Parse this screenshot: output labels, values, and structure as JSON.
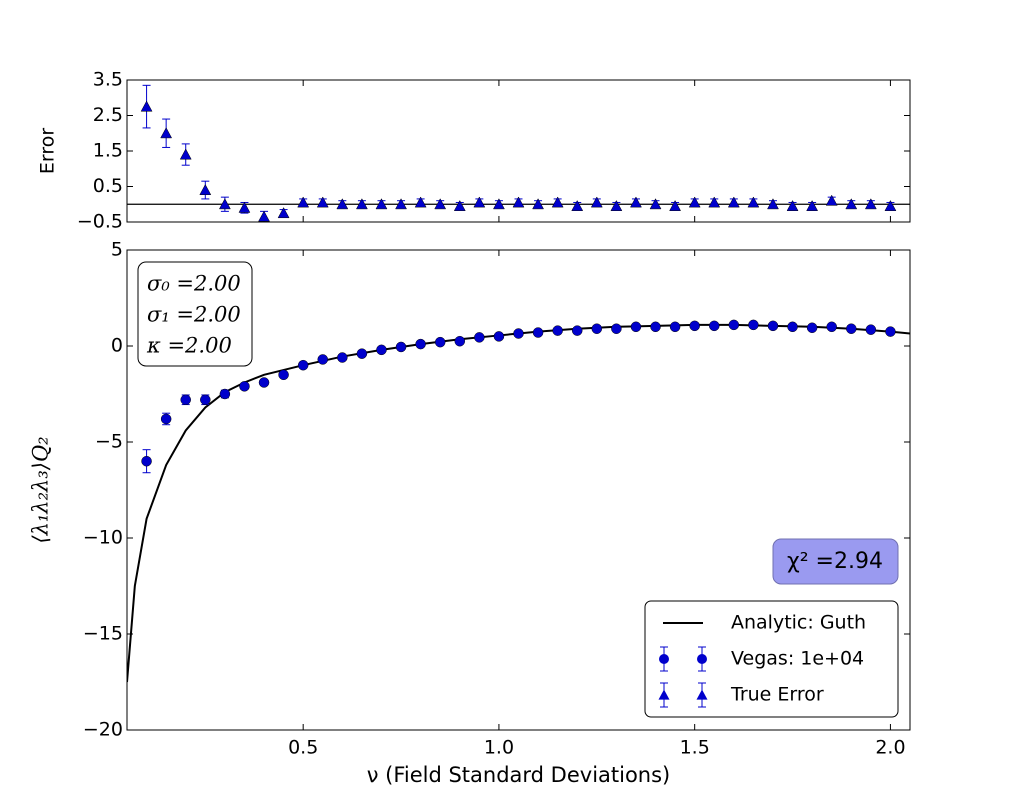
{
  "chart_data": [
    {
      "type": "scatter",
      "ylabel": "Error",
      "x": [
        0.1,
        0.15,
        0.2,
        0.25,
        0.3,
        0.35,
        0.4,
        0.45,
        0.5,
        0.55,
        0.6,
        0.65,
        0.7,
        0.75,
        0.8,
        0.85,
        0.9,
        0.95,
        1.0,
        1.05,
        1.1,
        1.15,
        1.2,
        1.25,
        1.3,
        1.35,
        1.4,
        1.45,
        1.5,
        1.55,
        1.6,
        1.65,
        1.7,
        1.75,
        1.8,
        1.85,
        1.9,
        1.95,
        2.0
      ],
      "series": [
        {
          "name": "True Error",
          "color": "#0000cc",
          "marker": "triangle",
          "values": [
            2.75,
            2.0,
            1.4,
            0.4,
            0.0,
            -0.1,
            -0.35,
            -0.25,
            0.05,
            0.05,
            0.0,
            0.0,
            0.0,
            0.0,
            0.05,
            0.0,
            -0.05,
            0.05,
            0.0,
            0.05,
            0.0,
            0.05,
            -0.05,
            0.05,
            -0.05,
            0.05,
            0.0,
            -0.05,
            0.05,
            0.05,
            0.05,
            0.05,
            0.0,
            -0.05,
            -0.05,
            0.1,
            0.0,
            0.0,
            -0.05
          ],
          "errors": [
            0.6,
            0.4,
            0.3,
            0.25,
            0.2,
            0.15,
            0.15,
            0.1,
            0.1,
            0.1,
            0.1,
            0.1,
            0.1,
            0.1,
            0.1,
            0.1,
            0.1,
            0.1,
            0.1,
            0.1,
            0.1,
            0.1,
            0.1,
            0.1,
            0.1,
            0.1,
            0.1,
            0.1,
            0.1,
            0.1,
            0.1,
            0.1,
            0.1,
            0.1,
            0.1,
            0.1,
            0.1,
            0.1,
            0.1
          ]
        }
      ],
      "hline": 0,
      "xlim": [
        0.05,
        2.05
      ],
      "ylim": [
        -0.5,
        3.5
      ],
      "yticks": [
        {
          "value": -0.5,
          "label": "−0.5"
        },
        0.5,
        1.5,
        2.5,
        3.5
      ]
    },
    {
      "type": "scatter",
      "xlabel": "ν (Field Standard Deviations)",
      "ylabel": "⟨λ₁λ₂λ₃⟩Q₂",
      "annotations": [
        "σ₀ =2.00",
        "σ₁ =2.00",
        "κ =2.00"
      ],
      "chi_label": "χ² =2.94",
      "x": [
        0.1,
        0.15,
        0.2,
        0.25,
        0.3,
        0.35,
        0.4,
        0.45,
        0.5,
        0.55,
        0.6,
        0.65,
        0.7,
        0.75,
        0.8,
        0.85,
        0.9,
        0.95,
        1.0,
        1.05,
        1.1,
        1.15,
        1.2,
        1.25,
        1.3,
        1.35,
        1.4,
        1.45,
        1.5,
        1.55,
        1.6,
        1.65,
        1.7,
        1.75,
        1.8,
        1.85,
        1.9,
        1.95,
        2.0
      ],
      "series": [
        {
          "name": "Analytic: Guth",
          "color": "#000000",
          "marker": "line",
          "x": [
            0.05,
            0.07,
            0.1,
            0.15,
            0.2,
            0.25,
            0.3,
            0.35,
            0.4,
            0.5,
            0.6,
            0.7,
            0.8,
            0.9,
            1.0,
            1.1,
            1.2,
            1.3,
            1.4,
            1.5,
            1.6,
            1.7,
            1.8,
            1.9,
            2.0,
            2.05
          ],
          "values": [
            -17.5,
            -12.5,
            -9,
            -6.2,
            -4.4,
            -3.2,
            -2.4,
            -1.9,
            -1.5,
            -1.0,
            -0.55,
            -0.2,
            0.1,
            0.35,
            0.55,
            0.75,
            0.9,
            1.0,
            1.05,
            1.1,
            1.1,
            1.05,
            1.0,
            0.9,
            0.75,
            0.65
          ]
        },
        {
          "name": "Vegas: 1e+04",
          "color": "#0000cc",
          "marker": "circle",
          "values": [
            -6.0,
            -3.8,
            -2.8,
            -2.8,
            -2.5,
            -2.1,
            -1.9,
            -1.5,
            -1.0,
            -0.7,
            -0.6,
            -0.4,
            -0.2,
            -0.05,
            0.1,
            0.2,
            0.25,
            0.45,
            0.5,
            0.65,
            0.7,
            0.8,
            0.8,
            0.9,
            0.9,
            1.0,
            1.0,
            1.0,
            1.05,
            1.05,
            1.1,
            1.1,
            1.05,
            1.0,
            0.95,
            1.0,
            0.9,
            0.85,
            0.75
          ],
          "errors": [
            0.6,
            0.3,
            0.25,
            0.25,
            0.2,
            0.15,
            0.1,
            0.1,
            0.1,
            0.1,
            0.1,
            0.1,
            0.1,
            0.1,
            0.1,
            0.1,
            0.1,
            0.1,
            0.1,
            0.1,
            0.1,
            0.1,
            0.1,
            0.1,
            0.1,
            0.1,
            0.1,
            0.1,
            0.1,
            0.1,
            0.1,
            0.1,
            0.1,
            0.1,
            0.1,
            0.1,
            0.1,
            0.1,
            0.1
          ]
        }
      ],
      "xlim": [
        0.05,
        2.05
      ],
      "ylim": [
        -20,
        5
      ],
      "xticks": [
        0.5,
        {
          "value": 1.0,
          "label": "1.0"
        },
        1.5,
        {
          "value": 2.0,
          "label": "2.0"
        }
      ],
      "yticks": [
        {
          "value": -20,
          "label": "−20"
        },
        {
          "value": -15,
          "label": "−15"
        },
        {
          "value": -10,
          "label": "−10"
        },
        {
          "value": -5,
          "label": "−5"
        },
        0,
        5
      ],
      "legend": "lower right"
    }
  ]
}
